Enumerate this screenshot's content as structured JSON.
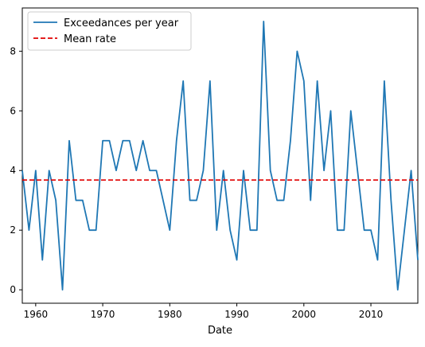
{
  "chart_data": {
    "type": "line",
    "title": "",
    "xlabel": "Date",
    "ylabel": "",
    "xlim": [
      1958,
      2017
    ],
    "ylim": [
      -0.45,
      9.45
    ],
    "xticks": [
      1960,
      1970,
      1980,
      1990,
      2000,
      2010
    ],
    "yticks": [
      0,
      2,
      4,
      6,
      8
    ],
    "grid": false,
    "legend_position": "top-left",
    "series": [
      {
        "name": "Exceedances per year",
        "color": "#1f77b4",
        "style": "solid",
        "x": [
          1958,
          1959,
          1960,
          1961,
          1962,
          1963,
          1964,
          1965,
          1966,
          1967,
          1968,
          1969,
          1970,
          1971,
          1972,
          1973,
          1974,
          1975,
          1976,
          1977,
          1978,
          1979,
          1980,
          1981,
          1982,
          1983,
          1984,
          1985,
          1986,
          1987,
          1988,
          1989,
          1990,
          1991,
          1992,
          1993,
          1994,
          1995,
          1996,
          1997,
          1998,
          1999,
          2000,
          2001,
          2002,
          2003,
          2004,
          2005,
          2006,
          2007,
          2008,
          2009,
          2010,
          2011,
          2012,
          2013,
          2014,
          2015,
          2016,
          2017
        ],
        "y": [
          4,
          2,
          4,
          1,
          4,
          3,
          0,
          5,
          3,
          3,
          2,
          2,
          5,
          5,
          4,
          5,
          5,
          4,
          5,
          4,
          4,
          3,
          2,
          5,
          7,
          3,
          3,
          4,
          7,
          2,
          4,
          2,
          1,
          4,
          2,
          2,
          9,
          4,
          3,
          3,
          5,
          8,
          7,
          3,
          7,
          4,
          6,
          2,
          2,
          6,
          4,
          2,
          2,
          1,
          7,
          3,
          0,
          2,
          4,
          1
        ]
      },
      {
        "name": "Mean rate",
        "color": "#e00000",
        "style": "dashed",
        "constant_y": 3.68
      }
    ]
  }
}
